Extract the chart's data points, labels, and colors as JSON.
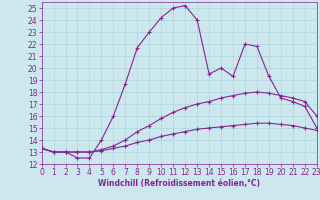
{
  "xlabel": "Windchill (Refroidissement éolien,°C)",
  "bg_color": "#cce8ee",
  "grid_color": "#b0d8e0",
  "line_color": "#882299",
  "xlim": [
    0,
    23
  ],
  "ylim": [
    12,
    25.5
  ],
  "xticks": [
    0,
    1,
    2,
    3,
    4,
    5,
    6,
    7,
    8,
    9,
    10,
    11,
    12,
    13,
    14,
    15,
    16,
    17,
    18,
    19,
    20,
    21,
    22,
    23
  ],
  "yticks": [
    12,
    13,
    14,
    15,
    16,
    17,
    18,
    19,
    20,
    21,
    22,
    23,
    24,
    25
  ],
  "series": [
    {
      "x": [
        0,
        1,
        2,
        3,
        4,
        5,
        6,
        7,
        8,
        9,
        10,
        11,
        12,
        13,
        14,
        15,
        16,
        17,
        18,
        19,
        20,
        21,
        22,
        23
      ],
      "y": [
        13.3,
        13.0,
        13.0,
        12.5,
        12.5,
        14.0,
        16.0,
        18.7,
        21.7,
        23.0,
        24.2,
        25.0,
        25.2,
        24.0,
        19.5,
        20.0,
        19.3,
        22.0,
        21.8,
        19.3,
        17.5,
        17.2,
        16.8,
        15.0
      ]
    },
    {
      "x": [
        0,
        1,
        2,
        3,
        4,
        5,
        6,
        7,
        8,
        9,
        10,
        11,
        12,
        13,
        14,
        15,
        16,
        17,
        18,
        19,
        20,
        21,
        22,
        23
      ],
      "y": [
        13.3,
        13.0,
        13.0,
        13.0,
        13.0,
        13.2,
        13.5,
        14.0,
        14.7,
        15.2,
        15.8,
        16.3,
        16.7,
        17.0,
        17.2,
        17.5,
        17.7,
        17.9,
        18.0,
        17.9,
        17.7,
        17.5,
        17.2,
        16.0
      ]
    },
    {
      "x": [
        0,
        1,
        2,
        3,
        4,
        5,
        6,
        7,
        8,
        9,
        10,
        11,
        12,
        13,
        14,
        15,
        16,
        17,
        18,
        19,
        20,
        21,
        22,
        23
      ],
      "y": [
        13.3,
        13.0,
        13.0,
        13.0,
        13.0,
        13.1,
        13.3,
        13.5,
        13.8,
        14.0,
        14.3,
        14.5,
        14.7,
        14.9,
        15.0,
        15.1,
        15.2,
        15.3,
        15.4,
        15.4,
        15.3,
        15.2,
        15.0,
        14.8
      ]
    }
  ],
  "marker": "+",
  "markersize": 3,
  "linewidth": 0.8,
  "tick_fontsize": 5.5,
  "xlabel_fontsize": 5.5,
  "xlabel_fontweight": "bold"
}
